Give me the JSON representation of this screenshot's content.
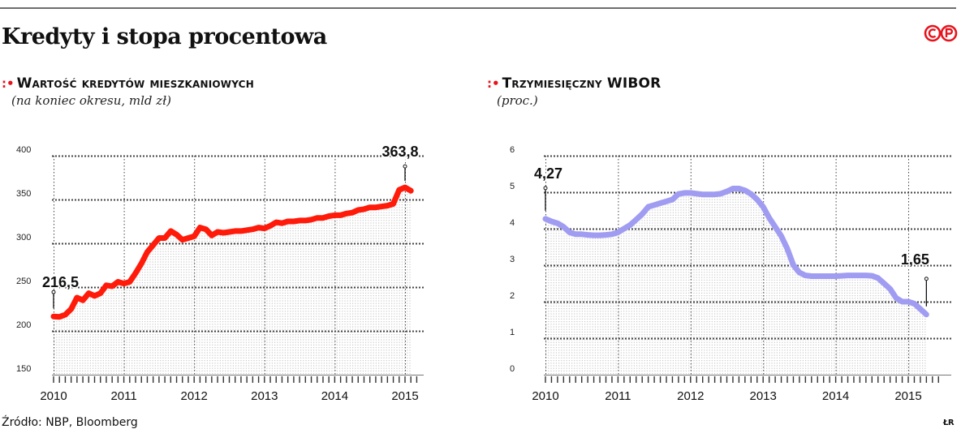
{
  "title": "Kredyty i stopa procentowa",
  "logo_text": "©P",
  "source": "Źródło: NBP, Bloomberg",
  "initials": "ŁR",
  "colors": {
    "loans": "#ff1a0a",
    "wibor": "#a09cf2",
    "accent": "#e8121c"
  },
  "chart_data": [
    {
      "type": "line",
      "title": "Wartość kredytów mieszkaniowych",
      "subtitle": "(na koniec okresu, mld zł)",
      "ylim": [
        150,
        400
      ],
      "yticks": [
        "150",
        "200",
        "250",
        "300",
        "350",
        "400"
      ],
      "xticks": [
        "2010",
        "2011",
        "2012",
        "2013",
        "2014",
        "2015"
      ],
      "grid": true,
      "series": [
        {
          "x": [
            2010.0,
            2010.083,
            2010.167,
            2010.25,
            2010.333,
            2010.417,
            2010.5,
            2010.583,
            2010.667,
            2010.75,
            2010.833,
            2010.917,
            2011.0,
            2011.083,
            2011.167,
            2011.25,
            2011.333,
            2011.417,
            2011.5,
            2011.583,
            2011.667,
            2011.75,
            2011.833,
            2011.917,
            2012.0,
            2012.083,
            2012.167,
            2012.25,
            2012.333,
            2012.417,
            2012.5,
            2012.583,
            2012.667,
            2012.75,
            2012.833,
            2012.917,
            2013.0,
            2013.083,
            2013.167,
            2013.25,
            2013.333,
            2013.417,
            2013.5,
            2013.583,
            2013.667,
            2013.75,
            2013.833,
            2013.917,
            2014.0,
            2014.083,
            2014.167,
            2014.25,
            2014.333,
            2014.417,
            2014.5,
            2014.583,
            2014.667,
            2014.75,
            2014.833,
            2014.917,
            2015.0,
            2015.083
          ],
          "values": [
            216.5,
            216.0,
            218.5,
            225.0,
            238.0,
            235.0,
            243.0,
            240.0,
            243.0,
            252.0,
            251.0,
            256.0,
            254.0,
            256.0,
            266.0,
            277.0,
            290.0,
            298.0,
            306.0,
            306.0,
            314.0,
            310.0,
            304.0,
            306.0,
            308.0,
            318.0,
            316.0,
            309.0,
            313.0,
            312.0,
            313.0,
            314.0,
            314.0,
            315.0,
            316.0,
            318.0,
            317.0,
            320.0,
            324.0,
            323.0,
            325.0,
            325.0,
            326.0,
            326.0,
            327.0,
            329.0,
            329.0,
            331.0,
            332.0,
            332.0,
            334.0,
            335.0,
            338.0,
            339.0,
            341.0,
            341.0,
            342.0,
            343.0,
            345.0,
            361.0,
            363.8,
            360.0
          ]
        }
      ],
      "annotations": [
        {
          "text": "216,5",
          "x": 2010.0,
          "y": 216.5
        },
        {
          "text": "363,8",
          "x": 2015.0,
          "y": 363.8
        }
      ]
    },
    {
      "type": "line",
      "title": "Trzymiesięczny WIBOR",
      "subtitle": "(proc.)",
      "ylim": [
        0,
        6
      ],
      "yticks": [
        "0",
        "1",
        "2",
        "3",
        "4",
        "5",
        "6"
      ],
      "xticks": [
        "2010",
        "2011",
        "2012",
        "2013",
        "2014",
        "2015"
      ],
      "grid": true,
      "series": [
        {
          "x": [
            2010.0,
            2010.083,
            2010.167,
            2010.25,
            2010.333,
            2010.417,
            2010.5,
            2010.583,
            2010.667,
            2010.75,
            2010.833,
            2010.917,
            2011.0,
            2011.083,
            2011.167,
            2011.25,
            2011.333,
            2011.417,
            2011.5,
            2011.583,
            2011.667,
            2011.75,
            2011.833,
            2011.917,
            2012.0,
            2012.083,
            2012.167,
            2012.25,
            2012.333,
            2012.417,
            2012.5,
            2012.583,
            2012.667,
            2012.75,
            2012.833,
            2012.917,
            2013.0,
            2013.083,
            2013.167,
            2013.25,
            2013.333,
            2013.417,
            2013.5,
            2013.583,
            2013.667,
            2013.75,
            2013.833,
            2013.917,
            2014.0,
            2014.083,
            2014.167,
            2014.25,
            2014.333,
            2014.417,
            2014.5,
            2014.583,
            2014.667,
            2014.75,
            2014.833,
            2014.917,
            2015.0,
            2015.083,
            2015.167,
            2015.25
          ],
          "values": [
            4.27,
            4.2,
            4.15,
            4.05,
            3.9,
            3.85,
            3.85,
            3.83,
            3.82,
            3.82,
            3.83,
            3.85,
            3.9,
            4.0,
            4.1,
            4.25,
            4.4,
            4.6,
            4.65,
            4.7,
            4.75,
            4.8,
            4.95,
            4.98,
            4.98,
            4.96,
            4.94,
            4.94,
            4.94,
            4.96,
            5.02,
            5.1,
            5.1,
            5.05,
            4.95,
            4.8,
            4.6,
            4.3,
            4.05,
            3.8,
            3.45,
            3.0,
            2.8,
            2.72,
            2.7,
            2.7,
            2.7,
            2.7,
            2.7,
            2.71,
            2.72,
            2.72,
            2.72,
            2.72,
            2.71,
            2.65,
            2.5,
            2.35,
            2.1,
            2.0,
            2.0,
            1.95,
            1.8,
            1.65
          ]
        }
      ],
      "annotations": [
        {
          "text": "4,27",
          "x": 2010.0,
          "y": 4.27
        },
        {
          "text": "1,65",
          "x": 2015.25,
          "y": 1.65
        }
      ]
    }
  ]
}
